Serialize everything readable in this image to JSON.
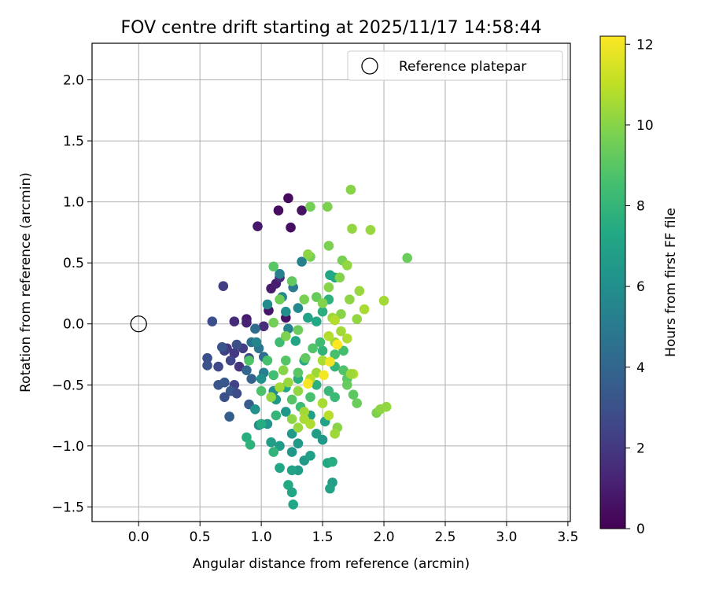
{
  "chart_data": {
    "type": "scatter",
    "title": "FOV centre drift starting at 2025/11/17 14:58:44",
    "xlabel": "Angular distance from reference (arcmin)",
    "ylabel": "Rotation from reference (arcmin)",
    "xlim": [
      -0.38,
      3.52
    ],
    "ylim": [
      -1.62,
      2.3
    ],
    "xticks": [
      0.0,
      0.5,
      1.0,
      1.5,
      2.0,
      2.5,
      3.0,
      3.5
    ],
    "xtick_labels": [
      "0.0",
      "0.5",
      "1.0",
      "1.5",
      "2.0",
      "2.5",
      "3.0",
      "3.5"
    ],
    "yticks": [
      -1.5,
      -1.0,
      -0.5,
      0.0,
      0.5,
      1.0,
      1.5,
      2.0
    ],
    "ytick_labels": [
      "−1.5",
      "−1.0",
      "−0.5",
      "0.0",
      "0.5",
      "1.0",
      "1.5",
      "2.0"
    ],
    "grid": true,
    "legend": {
      "position": "top-right",
      "entries": [
        {
          "label": "Reference platepar",
          "marker": "open-circle"
        }
      ]
    },
    "reference_point": {
      "x": 0.0,
      "y": 0.0,
      "label": "Reference platepar"
    },
    "colorbar": {
      "label": "Hours from first FF file",
      "colormap": "viridis",
      "range": [
        0,
        12.2
      ],
      "ticks": [
        0,
        2,
        4,
        6,
        8,
        10,
        12
      ],
      "tick_labels": [
        "0",
        "2",
        "4",
        "6",
        "8",
        "10",
        "12"
      ]
    },
    "series": [
      {
        "name": "FOV centre drift",
        "points": [
          [
            1.22,
            1.03,
            0.3
          ],
          [
            1.14,
            0.93,
            0.4
          ],
          [
            1.33,
            0.93,
            0.6
          ],
          [
            0.97,
            0.8,
            0.8
          ],
          [
            1.24,
            0.79,
            0.5
          ],
          [
            1.08,
            0.29,
            0.9
          ],
          [
            1.12,
            0.33,
            1.0
          ],
          [
            1.2,
            0.05,
            0.6
          ],
          [
            1.06,
            0.11,
            0.7
          ],
          [
            0.88,
            0.04,
            0.9
          ],
          [
            0.78,
            0.02,
            1.5
          ],
          [
            0.6,
            0.02,
            3.0
          ],
          [
            0.69,
            0.31,
            2.2
          ],
          [
            0.88,
            0.01,
            1.2
          ],
          [
            1.15,
            0.38,
            1.4
          ],
          [
            1.02,
            -0.02,
            1.6
          ],
          [
            0.72,
            -0.2,
            1.9
          ],
          [
            0.78,
            -0.24,
            2.0
          ],
          [
            0.7,
            -0.22,
            2.3
          ],
          [
            0.75,
            -0.3,
            2.5
          ],
          [
            0.65,
            -0.35,
            2.6
          ],
          [
            0.82,
            -0.35,
            1.8
          ],
          [
            0.85,
            -0.2,
            2.2
          ],
          [
            0.78,
            -0.5,
            2.4
          ],
          [
            0.9,
            -0.28,
            2.7
          ],
          [
            0.56,
            -0.28,
            3.0
          ],
          [
            0.56,
            -0.34,
            3.1
          ],
          [
            0.68,
            -0.19,
            3.2
          ],
          [
            0.8,
            -0.17,
            2.9
          ],
          [
            0.65,
            -0.5,
            3.2
          ],
          [
            0.7,
            -0.48,
            3.3
          ],
          [
            0.75,
            -0.55,
            3.4
          ],
          [
            0.8,
            -0.57,
            2.8
          ],
          [
            0.7,
            -0.6,
            3.0
          ],
          [
            0.74,
            -0.76,
            3.6
          ],
          [
            0.9,
            -0.66,
            3.5
          ],
          [
            0.92,
            -0.45,
            3.8
          ],
          [
            0.88,
            -0.38,
            4.0
          ],
          [
            0.95,
            -0.04,
            4.2
          ],
          [
            0.92,
            -0.15,
            4.5
          ],
          [
            0.98,
            -0.2,
            4.8
          ],
          [
            1.02,
            -0.27,
            4.3
          ],
          [
            1.15,
            0.41,
            5.2
          ],
          [
            1.17,
            0.22,
            5.6
          ],
          [
            1.26,
            0.3,
            5.0
          ],
          [
            1.33,
            0.51,
            5.3
          ],
          [
            1.3,
            0.13,
            5.7
          ],
          [
            1.2,
            0.1,
            6.0
          ],
          [
            1.22,
            -0.04,
            5.4
          ],
          [
            1.05,
            0.16,
            5.8
          ],
          [
            0.96,
            -0.15,
            5.5
          ],
          [
            1.02,
            -0.4,
            5.2
          ],
          [
            1.0,
            -0.45,
            6.1
          ],
          [
            1.1,
            -0.55,
            5.9
          ],
          [
            0.95,
            -0.7,
            6.2
          ],
          [
            1.05,
            -0.82,
            6.3
          ],
          [
            0.98,
            -0.83,
            6.0
          ],
          [
            1.12,
            -0.62,
            6.5
          ],
          [
            1.2,
            -0.72,
            6.4
          ],
          [
            1.25,
            -0.9,
            6.6
          ],
          [
            1.3,
            -0.98,
            6.5
          ],
          [
            1.15,
            -1.0,
            6.7
          ],
          [
            1.08,
            -0.97,
            6.8
          ],
          [
            1.25,
            -1.05,
            6.4
          ],
          [
            1.35,
            -1.12,
            6.6
          ],
          [
            1.4,
            -1.08,
            6.9
          ],
          [
            1.3,
            -1.2,
            6.7
          ],
          [
            1.25,
            -1.2,
            7.0
          ],
          [
            1.15,
            -1.18,
            7.2
          ],
          [
            1.22,
            -1.32,
            7.4
          ],
          [
            1.26,
            -1.48,
            7.2
          ],
          [
            1.25,
            -1.38,
            7.1
          ],
          [
            1.58,
            -1.3,
            6.8
          ],
          [
            1.56,
            -1.35,
            7.0
          ],
          [
            1.54,
            -1.14,
            7.3
          ],
          [
            1.58,
            -1.13,
            7.5
          ],
          [
            1.5,
            -0.95,
            6.5
          ],
          [
            1.45,
            -0.9,
            6.8
          ],
          [
            1.52,
            -0.8,
            7.0
          ],
          [
            1.4,
            -0.75,
            6.9
          ],
          [
            0.88,
            -0.93,
            7.6
          ],
          [
            0.91,
            -0.99,
            7.8
          ],
          [
            1.0,
            -0.82,
            7.5
          ],
          [
            1.1,
            -1.05,
            7.9
          ],
          [
            1.12,
            -0.75,
            8.0
          ],
          [
            1.2,
            -0.52,
            7.2
          ],
          [
            1.3,
            -0.45,
            7.6
          ],
          [
            1.35,
            -0.3,
            7.4
          ],
          [
            1.28,
            -0.14,
            7.1
          ],
          [
            1.38,
            0.05,
            7.0
          ],
          [
            1.45,
            0.02,
            7.3
          ],
          [
            1.5,
            0.1,
            7.6
          ],
          [
            1.55,
            0.2,
            7.8
          ],
          [
            1.56,
            0.4,
            7.2
          ],
          [
            1.6,
            0.38,
            7.4
          ],
          [
            1.5,
            -0.22,
            7.9
          ],
          [
            1.6,
            -0.35,
            8.0
          ],
          [
            1.45,
            -0.5,
            7.7
          ],
          [
            1.55,
            -0.55,
            8.1
          ],
          [
            1.6,
            -0.6,
            8.2
          ],
          [
            1.15,
            -0.15,
            8.4
          ],
          [
            1.05,
            -0.3,
            8.6
          ],
          [
            0.9,
            -0.3,
            8.8
          ],
          [
            1.1,
            -0.42,
            8.5
          ],
          [
            1.2,
            -0.3,
            8.9
          ],
          [
            1.0,
            -0.55,
            8.7
          ],
          [
            1.32,
            -0.68,
            8.3
          ],
          [
            1.4,
            -0.6,
            8.6
          ],
          [
            1.25,
            -0.62,
            8.9
          ],
          [
            1.3,
            -0.4,
            9.0
          ],
          [
            1.48,
            -0.15,
            8.4
          ],
          [
            1.42,
            -0.2,
            8.8
          ],
          [
            1.36,
            -0.28,
            9.2
          ],
          [
            1.6,
            -0.25,
            8.6
          ],
          [
            1.67,
            -0.38,
            8.8
          ],
          [
            1.7,
            -0.45,
            9.0
          ],
          [
            1.7,
            -0.5,
            9.3
          ],
          [
            1.75,
            -0.58,
            9.1
          ],
          [
            1.78,
            -0.65,
            9.4
          ],
          [
            1.67,
            -0.22,
            8.5
          ],
          [
            1.1,
            0.47,
            9.0
          ],
          [
            1.15,
            0.2,
            9.5
          ],
          [
            1.25,
            0.35,
            9.2
          ],
          [
            1.1,
            0.01,
            9.6
          ],
          [
            1.2,
            -0.1,
            9.8
          ],
          [
            1.3,
            -0.05,
            9.4
          ],
          [
            1.35,
            0.2,
            9.7
          ],
          [
            1.45,
            0.22,
            9.3
          ],
          [
            1.5,
            0.17,
            9.9
          ],
          [
            1.55,
            0.3,
            10.0
          ],
          [
            1.4,
            0.55,
            9.6
          ],
          [
            1.55,
            0.64,
            9.8
          ],
          [
            1.38,
            0.57,
            10.1
          ],
          [
            1.66,
            0.52,
            9.7
          ],
          [
            1.7,
            0.48,
            10.2
          ],
          [
            1.64,
            0.38,
            9.9
          ],
          [
            1.72,
            0.2,
            10.1
          ],
          [
            1.8,
            0.27,
            10.3
          ],
          [
            1.65,
            0.08,
            10.0
          ],
          [
            1.58,
            0.05,
            10.4
          ],
          [
            1.4,
            0.96,
            9.6
          ],
          [
            1.54,
            0.96,
            9.8
          ],
          [
            1.73,
            1.1,
            10.0
          ],
          [
            1.74,
            0.78,
            10.2
          ],
          [
            1.89,
            0.77,
            10.3
          ],
          [
            2.19,
            0.54,
            9.4
          ],
          [
            2.0,
            0.19,
            10.5
          ],
          [
            1.84,
            0.12,
            10.6
          ],
          [
            1.78,
            0.04,
            10.2
          ],
          [
            1.7,
            -0.12,
            10.7
          ],
          [
            1.6,
            -0.15,
            10.5
          ],
          [
            1.55,
            -0.1,
            10.8
          ],
          [
            1.5,
            -0.3,
            10.6
          ],
          [
            1.45,
            -0.4,
            10.4
          ],
          [
            1.4,
            -0.45,
            10.9
          ],
          [
            1.3,
            -0.55,
            10.2
          ],
          [
            1.35,
            -0.72,
            10.5
          ],
          [
            1.25,
            -0.78,
            10.1
          ],
          [
            1.3,
            -0.85,
            10.3
          ],
          [
            1.35,
            -0.78,
            10.6
          ],
          [
            1.4,
            -0.82,
            10.7
          ],
          [
            1.18,
            -0.38,
            10.0
          ],
          [
            1.22,
            -0.48,
            10.3
          ],
          [
            1.15,
            -0.52,
            10.5
          ],
          [
            1.08,
            -0.6,
            10.2
          ],
          [
            1.62,
            -0.85,
            10.0
          ],
          [
            1.6,
            -0.9,
            10.4
          ],
          [
            1.94,
            -0.73,
            9.8
          ],
          [
            1.97,
            -0.7,
            10.1
          ],
          [
            2.02,
            -0.68,
            10.2
          ],
          [
            1.75,
            -0.41,
            10.8
          ],
          [
            1.73,
            -0.41,
            10.4
          ],
          [
            1.5,
            -0.65,
            10.6
          ],
          [
            1.55,
            -0.75,
            10.9
          ],
          [
            1.62,
            -0.17,
            12.2
          ],
          [
            1.56,
            -0.31,
            11.9
          ],
          [
            1.51,
            -0.42,
            12.0
          ],
          [
            1.38,
            -0.49,
            12.1
          ],
          [
            1.65,
            -0.06,
            10.5
          ],
          [
            1.6,
            0.03,
            10.8
          ]
        ]
      }
    ]
  }
}
